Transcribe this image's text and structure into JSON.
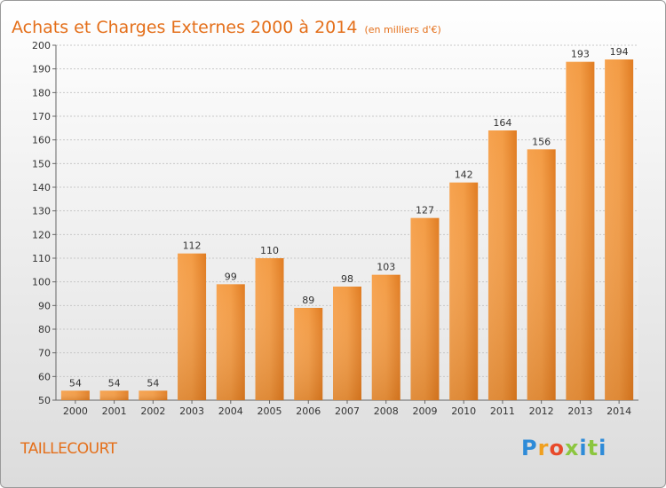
{
  "title": "Achats et Charges Externes 2000 à 2014",
  "unit": "(en milliers d'€)",
  "place": "TAILLECOURT",
  "logo": "Proxiti",
  "chart_data": {
    "type": "bar",
    "categories": [
      "2000",
      "2001",
      "2002",
      "2003",
      "2004",
      "2005",
      "2006",
      "2007",
      "2008",
      "2009",
      "2010",
      "2011",
      "2012",
      "2013",
      "2014"
    ],
    "values": [
      54,
      54,
      54,
      112,
      99,
      110,
      89,
      98,
      103,
      127,
      142,
      164,
      156,
      193,
      194
    ],
    "ylim": [
      50,
      200
    ],
    "yticks": [
      50,
      60,
      70,
      80,
      90,
      100,
      110,
      120,
      130,
      140,
      150,
      160,
      170,
      180,
      190,
      200
    ],
    "grid": true,
    "bar_color": "#f08a2e",
    "title": "Achats et Charges Externes 2000 à 2014",
    "xlabel": "",
    "ylabel": ""
  },
  "colors": {
    "accent": "#e46f1a",
    "logo_p": "#2e8bd8",
    "logo_r": "#f0a020",
    "logo_o": "#e84a2a",
    "logo_x": "#8cc63f",
    "logo_i": "#2e8bd8"
  }
}
